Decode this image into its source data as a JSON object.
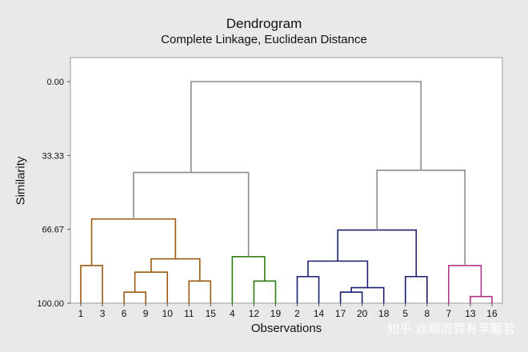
{
  "chart_data": {
    "type": "dendrogram",
    "title": "Dendrogram",
    "subtitle": "Complete Linkage, Euclidean Distance",
    "xlabel": "Observations",
    "ylabel": "Similarity",
    "ylim": [
      0,
      100
    ],
    "y_ticks": [
      "0.00",
      "33.33",
      "66.67",
      "100.00"
    ],
    "y_tick_values": [
      0,
      33.33,
      66.67,
      100
    ],
    "leaves": [
      "1",
      "3",
      "6",
      "9",
      "10",
      "11",
      "15",
      "4",
      "12",
      "19",
      "2",
      "14",
      "17",
      "20",
      "18",
      "5",
      "8",
      "7",
      "13",
      "16"
    ],
    "merges": [
      {
        "id": "a",
        "children": [
          "6",
          "9"
        ],
        "similarity": 95
      },
      {
        "id": "b",
        "children": [
          "a",
          "10"
        ],
        "similarity": 86
      },
      {
        "id": "c",
        "children": [
          "11",
          "15"
        ],
        "similarity": 90
      },
      {
        "id": "d",
        "children": [
          "b",
          "c"
        ],
        "similarity": 80
      },
      {
        "id": "e",
        "children": [
          "1",
          "3"
        ],
        "similarity": 83
      },
      {
        "id": "f",
        "children": [
          "e",
          "d"
        ],
        "similarity": 62
      },
      {
        "id": "g",
        "children": [
          "12",
          "19"
        ],
        "similarity": 90
      },
      {
        "id": "h",
        "children": [
          "4",
          "g"
        ],
        "similarity": 79
      },
      {
        "id": "i",
        "children": [
          "f",
          "h"
        ],
        "similarity": 41
      },
      {
        "id": "j",
        "children": [
          "17",
          "20"
        ],
        "similarity": 95
      },
      {
        "id": "k",
        "children": [
          "j",
          "18"
        ],
        "similarity": 93
      },
      {
        "id": "l",
        "children": [
          "2",
          "14"
        ],
        "similarity": 88
      },
      {
        "id": "m",
        "children": [
          "l",
          "k"
        ],
        "similarity": 81
      },
      {
        "id": "n",
        "children": [
          "5",
          "8"
        ],
        "similarity": 88
      },
      {
        "id": "o",
        "children": [
          "m",
          "n"
        ],
        "similarity": 67
      },
      {
        "id": "p",
        "children": [
          "13",
          "16"
        ],
        "similarity": 97
      },
      {
        "id": "q",
        "children": [
          "7",
          "p"
        ],
        "similarity": 83
      },
      {
        "id": "r",
        "children": [
          "o",
          "q"
        ],
        "similarity": 40
      },
      {
        "id": "s",
        "children": [
          "i",
          "r"
        ],
        "similarity": 0
      }
    ],
    "clusters": [
      {
        "root": "f",
        "color": "#9a5a12"
      },
      {
        "root": "h",
        "color": "#2f7d16"
      },
      {
        "root": "o",
        "color": "#1a1f6e"
      },
      {
        "root": "q",
        "color": "#b0358a"
      }
    ],
    "link_color": "#8c8c8c",
    "grid": false,
    "legend": "none"
  },
  "watermark": "知乎 @顺而巽有孚颙若"
}
